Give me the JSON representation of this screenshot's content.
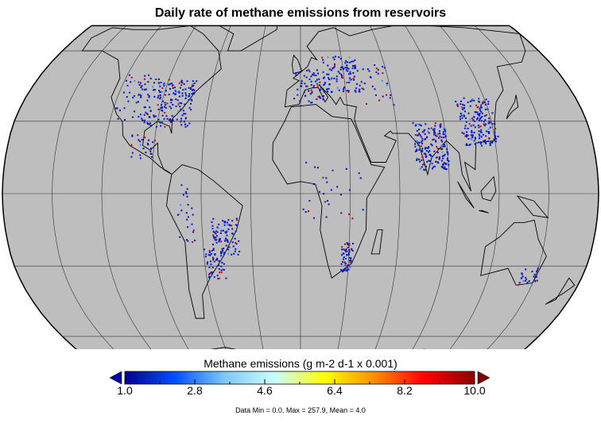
{
  "title": "Daily rate of methane emissions from reservoirs",
  "colorbar": {
    "label": "Methane emissions (g m-2 d-1 x 0.001)",
    "ticks": [
      "1.0",
      "2.8",
      "4.6",
      "6.4",
      "8.2",
      "10.0"
    ],
    "min": 1.0,
    "max": 10.0,
    "colors": [
      "#00008c",
      "#0050ff",
      "#7fc8ff",
      "#c8ffff",
      "#ffff00",
      "#ff8c00",
      "#ff0000",
      "#8c0000"
    ]
  },
  "stats": "Data Min = 0.0, Max = 257.9, Mean = 4.0",
  "map": {
    "projection": "Robinson",
    "ocean_color": "#bebebe",
    "low_color": "#0015c8",
    "high_color": "#c80000"
  }
}
